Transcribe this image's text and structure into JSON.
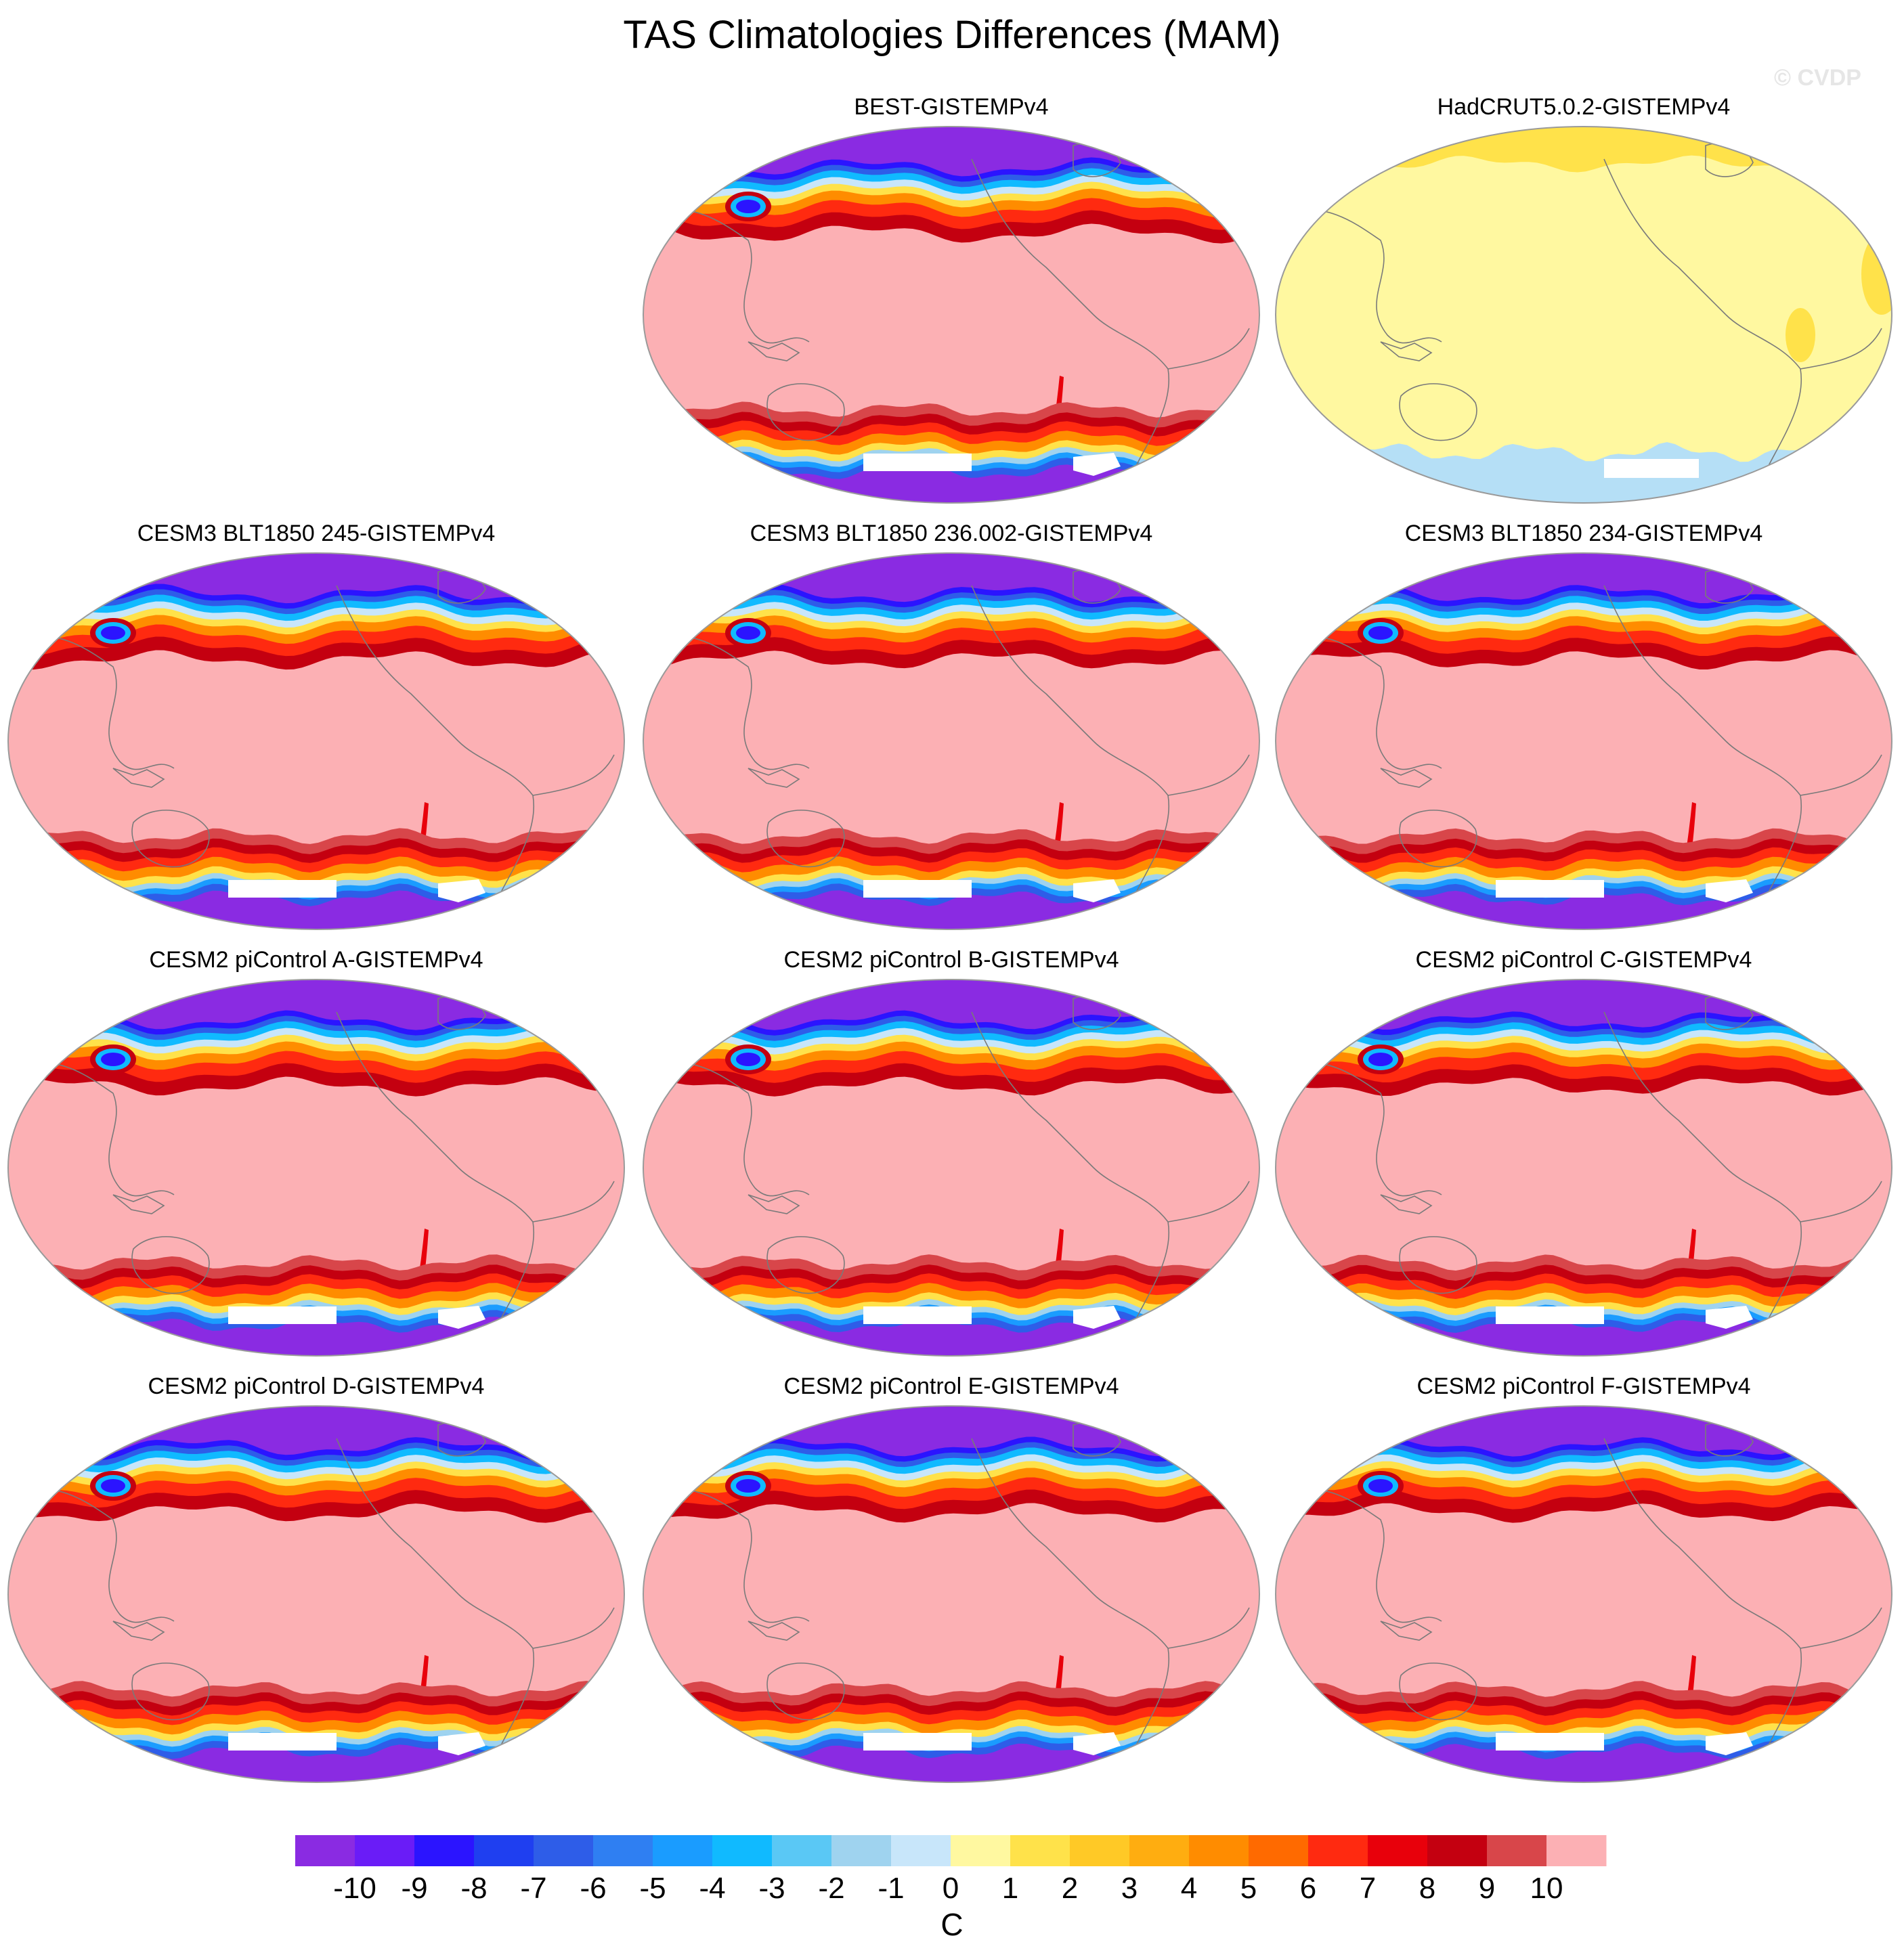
{
  "title": "TAS Climatologies Differences (MAM)",
  "watermark": "© CVDP",
  "panels": [
    {
      "title": "BEST-GISTEMPv4",
      "style": "bias"
    },
    {
      "title": "HadCRUT5.0.2-GISTEMPv4",
      "style": "obs"
    },
    {
      "title": "CESM3 BLT1850 245-GISTEMPv4",
      "style": "bias"
    },
    {
      "title": "CESM3 BLT1850 236.002-GISTEMPv4",
      "style": "bias"
    },
    {
      "title": "CESM3 BLT1850 234-GISTEMPv4",
      "style": "bias"
    },
    {
      "title": "CESM2 piControl A-GISTEMPv4",
      "style": "bias"
    },
    {
      "title": "CESM2 piControl B-GISTEMPv4",
      "style": "bias"
    },
    {
      "title": "CESM2 piControl C-GISTEMPv4",
      "style": "bias"
    },
    {
      "title": "CESM2 piControl D-GISTEMPv4",
      "style": "bias"
    },
    {
      "title": "CESM2 piControl E-GISTEMPv4",
      "style": "bias"
    },
    {
      "title": "CESM2 piControl F-GISTEMPv4",
      "style": "bias"
    }
  ],
  "colorbar": {
    "units": "C",
    "labels": [
      "-10",
      "-9",
      "-8",
      "-7",
      "-6",
      "-5",
      "-4",
      "-3",
      "-2",
      "-1",
      "0",
      "1",
      "2",
      "3",
      "4",
      "5",
      "6",
      "7",
      "8",
      "9",
      "10"
    ],
    "colors": [
      "#8a2be2",
      "#6a1cf7",
      "#2b14ff",
      "#1f3ff0",
      "#2e5de8",
      "#2f7ff2",
      "#1a9cff",
      "#10baff",
      "#5ac8f5",
      "#9fd3ef",
      "#c8e6fa",
      "#fff8a0",
      "#ffe24a",
      "#ffc926",
      "#ffad10",
      "#ff8c00",
      "#ff6a00",
      "#ff2a10",
      "#e8000b",
      "#c40010",
      "#d8464a",
      "#fcb0b4"
    ]
  },
  "map_colors": {
    "ocean_warm": "#fcb0b4",
    "polar_cold": "#8a2be2",
    "obs_base": "#fff8a0",
    "obs_yellow": "#ffe24a",
    "obs_blue": "#b5dff6",
    "missing": "#ffffff",
    "coast": "#7a7a7a"
  }
}
